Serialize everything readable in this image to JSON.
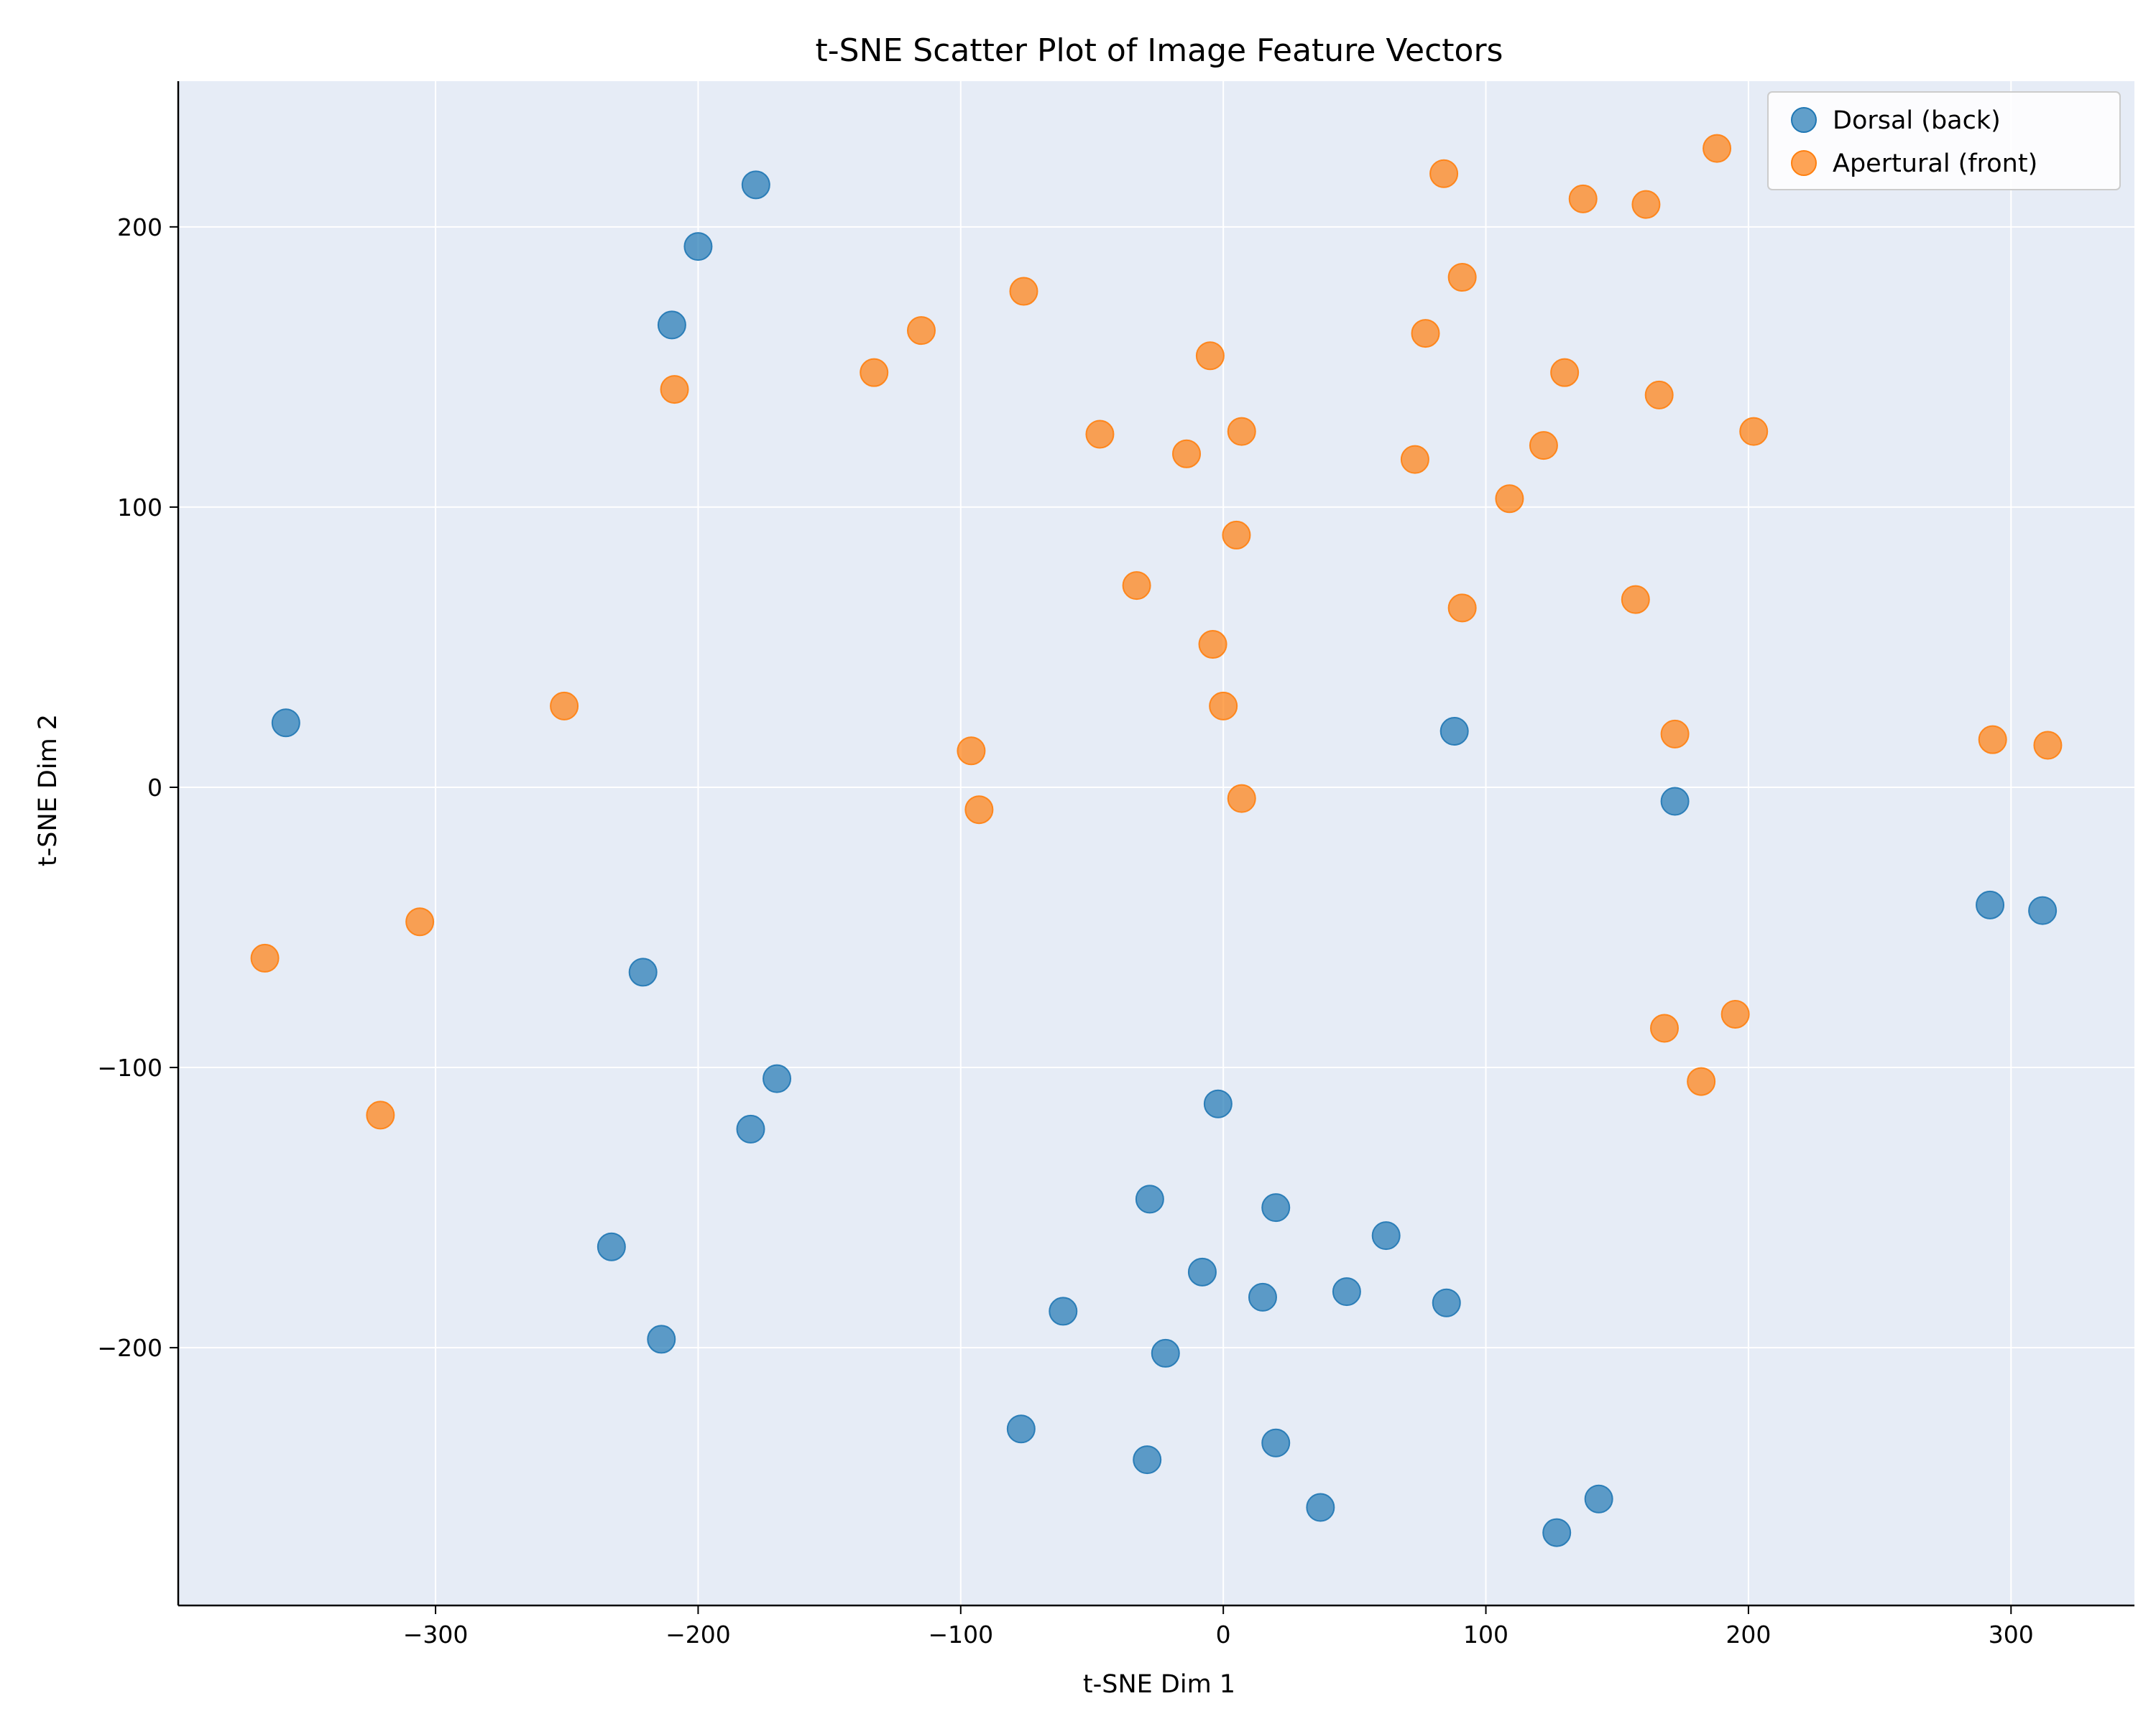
{
  "chart_data": {
    "type": "scatter",
    "title": "t-SNE Scatter Plot of Image Feature Vectors",
    "xlabel": "t-SNE Dim 1",
    "ylabel": "t-SNE Dim 2",
    "xlim": [
      -398,
      347
    ],
    "ylim": [
      -292,
      252
    ],
    "xticks": [
      -300,
      -200,
      -100,
      0,
      100,
      200,
      300
    ],
    "yticks": [
      -200,
      -100,
      0,
      100,
      200
    ],
    "xtick_labels": [
      "−300",
      "−200",
      "−100",
      "0",
      "100",
      "200",
      "300"
    ],
    "ytick_labels": [
      "−200",
      "−100",
      "0",
      "100",
      "200"
    ],
    "grid": true,
    "background_color": "#e6ecf6",
    "legend_position": "top-right",
    "series": [
      {
        "name": "Dorsal (back)",
        "color": "#1f77b4",
        "points": [
          [
            -357,
            23
          ],
          [
            -221,
            -66
          ],
          [
            -233,
            -164
          ],
          [
            -214,
            -197
          ],
          [
            -178,
            215
          ],
          [
            -200,
            193
          ],
          [
            -210,
            165
          ],
          [
            -170,
            -104
          ],
          [
            -180,
            -122
          ],
          [
            88,
            20
          ],
          [
            172,
            -5
          ],
          [
            292,
            -42
          ],
          [
            312,
            -44
          ],
          [
            -2,
            -113
          ],
          [
            -28,
            -147
          ],
          [
            20,
            -150
          ],
          [
            62,
            -160
          ],
          [
            -8,
            -173
          ],
          [
            15,
            -182
          ],
          [
            47,
            -180
          ],
          [
            85,
            -184
          ],
          [
            -61,
            -187
          ],
          [
            -22,
            -202
          ],
          [
            -77,
            -229
          ],
          [
            -29,
            -240
          ],
          [
            20,
            -234
          ],
          [
            37,
            -257
          ],
          [
            127,
            -266
          ],
          [
            143,
            -254
          ]
        ]
      },
      {
        "name": "Apertural (front)",
        "color": "#ff7f0e",
        "points": [
          [
            -365,
            -61
          ],
          [
            -306,
            -48
          ],
          [
            -321,
            -117
          ],
          [
            -251,
            29
          ],
          [
            -209,
            142
          ],
          [
            -133,
            148
          ],
          [
            -115,
            163
          ],
          [
            -76,
            177
          ],
          [
            -47,
            126
          ],
          [
            -14,
            119
          ],
          [
            -5,
            154
          ],
          [
            7,
            127
          ],
          [
            5,
            90
          ],
          [
            -33,
            72
          ],
          [
            -4,
            51
          ],
          [
            0,
            29
          ],
          [
            -96,
            13
          ],
          [
            -93,
            -8
          ],
          [
            7,
            -4
          ],
          [
            84,
            219
          ],
          [
            91,
            182
          ],
          [
            77,
            162
          ],
          [
            73,
            117
          ],
          [
            91,
            64
          ],
          [
            109,
            103
          ],
          [
            122,
            122
          ],
          [
            130,
            148
          ],
          [
            137,
            210
          ],
          [
            161,
            208
          ],
          [
            166,
            140
          ],
          [
            157,
            67
          ],
          [
            172,
            19
          ],
          [
            188,
            228
          ],
          [
            202,
            127
          ],
          [
            168,
            -86
          ],
          [
            182,
            -105
          ],
          [
            195,
            -81
          ],
          [
            293,
            17
          ],
          [
            314,
            15
          ]
        ]
      }
    ]
  }
}
